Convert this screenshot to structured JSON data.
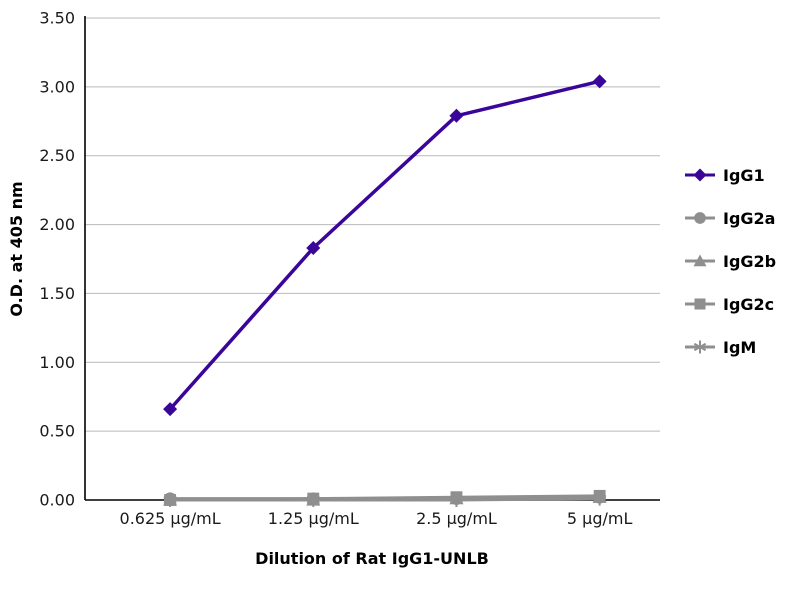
{
  "chart_data": {
    "type": "line",
    "categories": [
      "0.625 µg/mL",
      "1.25 µg/mL",
      "2.5 µg/mL",
      "5 µg/mL"
    ],
    "series": [
      {
        "name": "IgG1",
        "values": [
          0.66,
          1.83,
          2.79,
          3.04
        ],
        "color": "#3a0599",
        "marker": "diamond"
      },
      {
        "name": "IgG2a",
        "values": [
          0.01,
          0.01,
          0.01,
          0.02
        ],
        "color": "#8f8f8f",
        "marker": "circle"
      },
      {
        "name": "IgG2b",
        "values": [
          0.0,
          0.0,
          0.01,
          0.02
        ],
        "color": "#8f8f8f",
        "marker": "triangle"
      },
      {
        "name": "IgG2c",
        "values": [
          0.0,
          0.01,
          0.02,
          0.03
        ],
        "color": "#8f8f8f",
        "marker": "square"
      },
      {
        "name": "IgM",
        "values": [
          0.0,
          0.0,
          0.0,
          0.01
        ],
        "color": "#8f8f8f",
        "marker": "asterisk"
      }
    ],
    "title": "",
    "xlabel": "Dilution of Rat IgG1-UNLB",
    "ylabel": "O.D. at 405 nm",
    "ylim": [
      0,
      3.5
    ],
    "yticks": [
      0,
      0.5,
      1,
      1.5,
      2,
      2.5,
      3,
      3.5
    ],
    "ytick_labels": [
      "0.00",
      "0.50",
      "1.00",
      "1.50",
      "2.00",
      "2.50",
      "3.00",
      "3.50"
    ],
    "grid": true,
    "legend_position": "right",
    "colors": {
      "gridline": "#b9b9b9",
      "axis": "#000000",
      "accent": "#3a0599",
      "muted_series": "#8f8f8f"
    }
  }
}
